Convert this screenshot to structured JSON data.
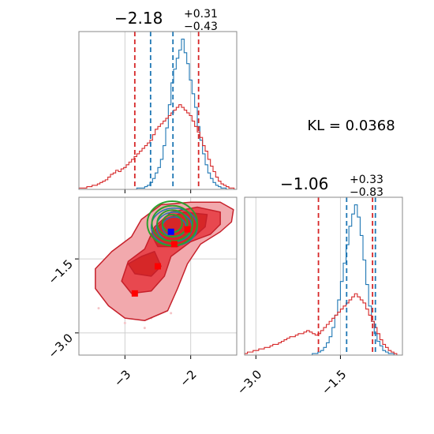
{
  "chart_data": [
    {
      "type": "histogram",
      "panel": "x-marginal",
      "title": {
        "main": "−2.18",
        "plus": "+0.31",
        "minus": "−0.43"
      },
      "xlim": [
        -3.7,
        -1.3
      ],
      "x_ticks": [
        -3,
        -2
      ],
      "x_tick_labels": [
        "",
        ""
      ],
      "vlines": [
        {
          "x": -2.85,
          "color": "#d62728"
        },
        {
          "x": -1.88,
          "color": "#d62728"
        },
        {
          "x": -2.61,
          "color": "#1f77b4"
        },
        {
          "x": -2.27,
          "color": "#1f77b4"
        }
      ],
      "series": [
        {
          "color": "#1f77b4",
          "bin_start": -3.7,
          "bin_width": 0.04,
          "values": [
            0,
            0,
            0,
            0,
            0,
            0,
            0,
            0,
            0,
            0,
            0,
            0,
            0,
            0,
            0,
            0,
            0,
            0,
            0,
            0,
            0,
            0,
            1,
            1,
            1,
            2,
            3,
            5,
            8,
            12,
            16,
            22,
            32,
            45,
            62,
            78,
            88,
            96,
            102,
            110,
            100,
            92,
            80,
            70,
            60,
            46,
            36,
            26,
            18,
            12,
            8,
            5,
            3,
            2,
            1,
            1,
            0,
            0,
            0,
            0
          ]
        },
        {
          "color": "#d62728",
          "bin_start": -3.7,
          "bin_width": 0.04,
          "values": [
            1,
            1,
            1,
            2,
            2,
            3,
            3,
            4,
            5,
            6,
            7,
            9,
            11,
            12,
            14,
            13,
            15,
            16,
            18,
            20,
            22,
            24,
            26,
            28,
            30,
            32,
            34,
            36,
            40,
            44,
            46,
            48,
            50,
            52,
            54,
            56,
            58,
            60,
            62,
            60,
            58,
            56,
            54,
            50,
            46,
            42,
            38,
            32,
            28,
            22,
            17,
            13,
            9,
            6,
            4,
            3,
            2,
            1,
            1,
            0
          ]
        }
      ]
    },
    {
      "type": "histogram",
      "panel": "y-marginal",
      "title": {
        "main": "−1.06",
        "plus": "+0.33",
        "minus": "−0.83"
      },
      "xlim": [
        -3.2,
        -0.4
      ],
      "x_ticks": [
        -3.0,
        -1.5
      ],
      "x_tick_labels": [
        "−3.0",
        "−1.5"
      ],
      "vlines": [
        {
          "x": -1.89,
          "color": "#d62728"
        },
        {
          "x": -0.93,
          "color": "#d62728"
        },
        {
          "x": -1.39,
          "color": "#1f77b4"
        },
        {
          "x": -0.88,
          "color": "#1f77b4"
        }
      ],
      "series": [
        {
          "color": "#1f77b4",
          "bin_start": -3.2,
          "bin_width": 0.05,
          "values": [
            0,
            0,
            0,
            0,
            0,
            0,
            0,
            0,
            0,
            0,
            0,
            0,
            0,
            0,
            0,
            0,
            0,
            0,
            0,
            0,
            0,
            0,
            0,
            0,
            1,
            1,
            2,
            3,
            5,
            8,
            12,
            18,
            26,
            36,
            48,
            60,
            72,
            84,
            92,
            98,
            90,
            78,
            62,
            46,
            32,
            22,
            14,
            9,
            6,
            3,
            2,
            1,
            1,
            0,
            0,
            0
          ]
        },
        {
          "color": "#d62728",
          "bin_start": -3.2,
          "bin_width": 0.05,
          "values": [
            1,
            2,
            2,
            3,
            3,
            4,
            4,
            5,
            5,
            6,
            7,
            7,
            8,
            9,
            10,
            11,
            12,
            12,
            13,
            14,
            14,
            15,
            16,
            15,
            14,
            13,
            14,
            16,
            18,
            20,
            22,
            24,
            26,
            28,
            30,
            32,
            34,
            36,
            38,
            40,
            38,
            36,
            34,
            30,
            26,
            22,
            18,
            14,
            10,
            7,
            5,
            3,
            2,
            1,
            0,
            0
          ]
        }
      ]
    },
    {
      "type": "contour",
      "panel": "joint",
      "xlim": [
        -3.7,
        -1.3
      ],
      "ylim": [
        -3.45,
        -0.25
      ],
      "x_ticks": [
        -3,
        -2
      ],
      "x_tick_labels": [
        "−3",
        "−2"
      ],
      "y_ticks": [
        -3.0,
        -1.5
      ],
      "y_tick_labels": [
        "−3.0",
        "−1.5"
      ],
      "red_points": [
        {
          "x": -2.05,
          "y": -0.9
        },
        {
          "x": -2.25,
          "y": -1.2
        },
        {
          "x": -2.5,
          "y": -1.65
        },
        {
          "x": -2.85,
          "y": -2.2
        }
      ],
      "blue_point": {
        "x": -2.3,
        "y": -0.95
      },
      "colors": {
        "red_fill_light": "#f2a9ad",
        "red_fill_mid": "#e8484f",
        "red_fill_dark": "#d62728",
        "red_line": "#c6202a",
        "blue_line": "#1f77b4",
        "green_line": "#2ca02c"
      }
    }
  ],
  "annotation": {
    "kl_text": "KL = 0.0368"
  }
}
